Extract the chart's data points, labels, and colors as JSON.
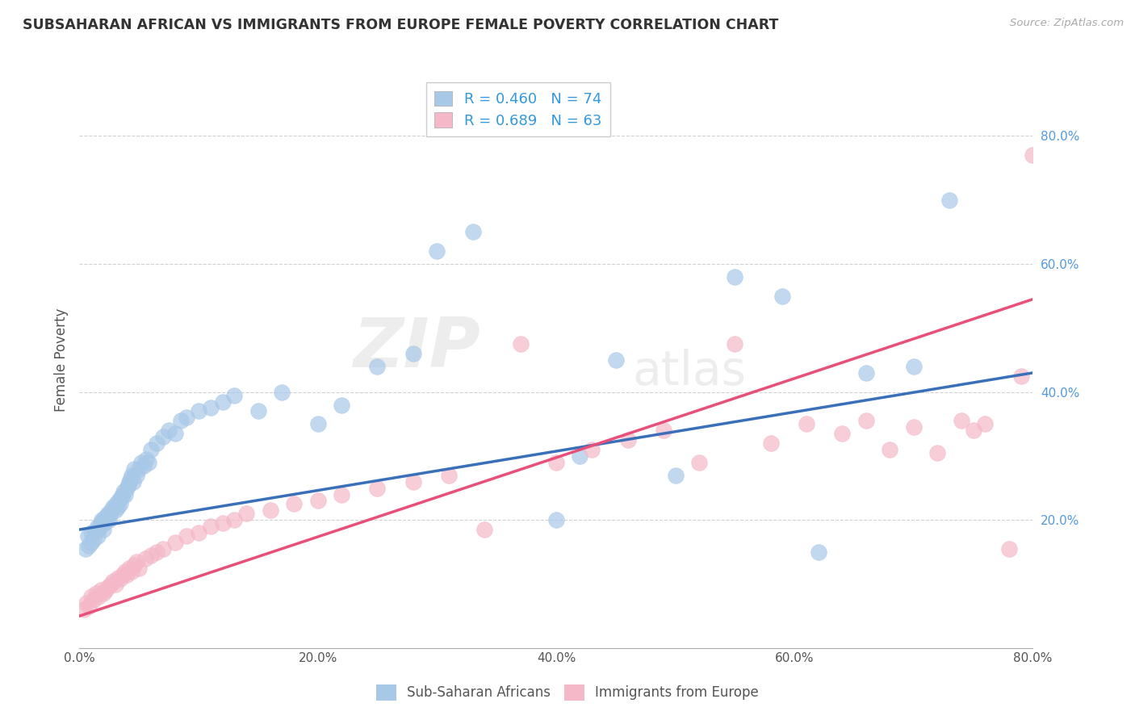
{
  "title": "SUBSAHARAN AFRICAN VS IMMIGRANTS FROM EUROPE FEMALE POVERTY CORRELATION CHART",
  "source": "Source: ZipAtlas.com",
  "ylabel": "Female Poverty",
  "xlim": [
    0.0,
    0.8
  ],
  "ylim": [
    0.0,
    0.9
  ],
  "xtick_labels": [
    "0.0%",
    "",
    "20.0%",
    "",
    "40.0%",
    "",
    "60.0%",
    "",
    "80.0%"
  ],
  "xtick_vals": [
    0.0,
    0.1,
    0.2,
    0.3,
    0.4,
    0.5,
    0.6,
    0.7,
    0.8
  ],
  "ytick_labels": [
    "20.0%",
    "40.0%",
    "60.0%",
    "80.0%"
  ],
  "ytick_vals": [
    0.2,
    0.4,
    0.6,
    0.8
  ],
  "blue_color": "#a8c8e8",
  "pink_color": "#f4b8c8",
  "blue_line_color": "#3a6fba",
  "pink_line_color": "#e8507a",
  "R_blue": 0.46,
  "N_blue": 74,
  "R_pink": 0.689,
  "N_pink": 63,
  "legend_label_blue": "Sub-Saharan Africans",
  "legend_label_pink": "Immigrants from Europe",
  "watermark_zip": "ZIP",
  "watermark_atlas": "atlas",
  "blue_scatter_x": [
    0.005,
    0.007,
    0.008,
    0.01,
    0.01,
    0.012,
    0.013,
    0.015,
    0.015,
    0.016,
    0.017,
    0.018,
    0.019,
    0.02,
    0.02,
    0.021,
    0.022,
    0.023,
    0.024,
    0.025,
    0.026,
    0.027,
    0.028,
    0.03,
    0.031,
    0.032,
    0.033,
    0.034,
    0.035,
    0.036,
    0.037,
    0.038,
    0.04,
    0.041,
    0.042,
    0.043,
    0.044,
    0.045,
    0.046,
    0.048,
    0.05,
    0.052,
    0.054,
    0.056,
    0.058,
    0.06,
    0.065,
    0.07,
    0.075,
    0.08,
    0.085,
    0.09,
    0.1,
    0.11,
    0.12,
    0.13,
    0.15,
    0.17,
    0.2,
    0.22,
    0.25,
    0.28,
    0.3,
    0.33,
    0.4,
    0.42,
    0.45,
    0.5,
    0.55,
    0.59,
    0.62,
    0.66,
    0.7,
    0.73
  ],
  "blue_scatter_y": [
    0.155,
    0.175,
    0.16,
    0.165,
    0.18,
    0.17,
    0.182,
    0.175,
    0.19,
    0.185,
    0.19,
    0.195,
    0.2,
    0.185,
    0.2,
    0.195,
    0.205,
    0.2,
    0.21,
    0.2,
    0.21,
    0.215,
    0.22,
    0.215,
    0.225,
    0.22,
    0.23,
    0.225,
    0.235,
    0.24,
    0.245,
    0.24,
    0.25,
    0.255,
    0.26,
    0.265,
    0.27,
    0.26,
    0.28,
    0.27,
    0.28,
    0.29,
    0.285,
    0.295,
    0.29,
    0.31,
    0.32,
    0.33,
    0.34,
    0.335,
    0.355,
    0.36,
    0.37,
    0.375,
    0.385,
    0.395,
    0.37,
    0.4,
    0.35,
    0.38,
    0.44,
    0.46,
    0.62,
    0.65,
    0.2,
    0.3,
    0.45,
    0.27,
    0.58,
    0.55,
    0.15,
    0.43,
    0.44,
    0.7
  ],
  "pink_scatter_x": [
    0.004,
    0.006,
    0.008,
    0.01,
    0.012,
    0.014,
    0.016,
    0.018,
    0.02,
    0.022,
    0.024,
    0.026,
    0.028,
    0.03,
    0.032,
    0.034,
    0.036,
    0.038,
    0.04,
    0.042,
    0.044,
    0.046,
    0.048,
    0.05,
    0.055,
    0.06,
    0.065,
    0.07,
    0.08,
    0.09,
    0.1,
    0.11,
    0.12,
    0.13,
    0.14,
    0.16,
    0.18,
    0.2,
    0.22,
    0.25,
    0.28,
    0.31,
    0.34,
    0.37,
    0.4,
    0.43,
    0.46,
    0.49,
    0.52,
    0.55,
    0.58,
    0.61,
    0.64,
    0.66,
    0.68,
    0.7,
    0.72,
    0.74,
    0.75,
    0.76,
    0.78,
    0.79,
    0.8
  ],
  "pink_scatter_y": [
    0.06,
    0.07,
    0.065,
    0.08,
    0.075,
    0.085,
    0.08,
    0.09,
    0.085,
    0.09,
    0.095,
    0.1,
    0.105,
    0.1,
    0.11,
    0.108,
    0.115,
    0.12,
    0.115,
    0.125,
    0.12,
    0.13,
    0.135,
    0.125,
    0.14,
    0.145,
    0.15,
    0.155,
    0.165,
    0.175,
    0.18,
    0.19,
    0.195,
    0.2,
    0.21,
    0.215,
    0.225,
    0.23,
    0.24,
    0.25,
    0.26,
    0.27,
    0.185,
    0.475,
    0.29,
    0.31,
    0.325,
    0.34,
    0.29,
    0.475,
    0.32,
    0.35,
    0.335,
    0.355,
    0.31,
    0.345,
    0.305,
    0.355,
    0.34,
    0.35,
    0.155,
    0.425,
    0.77
  ],
  "blue_line_x0": 0.0,
  "blue_line_y0": 0.185,
  "blue_line_x1": 0.8,
  "blue_line_y1": 0.43,
  "pink_line_x0": 0.0,
  "pink_line_y0": 0.05,
  "pink_line_x1": 0.8,
  "pink_line_y1": 0.545
}
